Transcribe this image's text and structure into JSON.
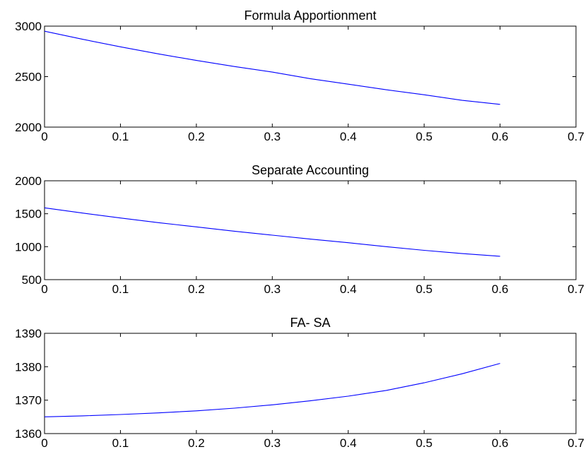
{
  "chart_data": [
    {
      "type": "line",
      "title": "Formula Apportionment",
      "xlabel": "",
      "ylabel": "",
      "xlim": [
        0,
        0.7
      ],
      "ylim": [
        2000,
        3000
      ],
      "xticks": [
        "0",
        "0.1",
        "0.2",
        "0.3",
        "0.4",
        "0.5",
        "0.6",
        "0.7"
      ],
      "yticks": [
        "2000",
        "2500",
        "3000"
      ],
      "grid": false,
      "color": "#0000ff",
      "x": [
        0,
        0.05,
        0.1,
        0.15,
        0.2,
        0.25,
        0.3,
        0.35,
        0.4,
        0.45,
        0.5,
        0.55,
        0.6
      ],
      "y": [
        2950,
        2870,
        2795,
        2725,
        2660,
        2600,
        2545,
        2480,
        2425,
        2370,
        2320,
        2265,
        2225
      ]
    },
    {
      "type": "line",
      "title": "Separate Accounting",
      "xlabel": "",
      "ylabel": "",
      "xlim": [
        0,
        0.7
      ],
      "ylim": [
        500,
        2000
      ],
      "xticks": [
        "0",
        "0.1",
        "0.2",
        "0.3",
        "0.4",
        "0.5",
        "0.6",
        "0.7"
      ],
      "yticks": [
        "500",
        "1000",
        "1500",
        "2000"
      ],
      "grid": false,
      "color": "#0000ff",
      "x": [
        0,
        0.05,
        0.1,
        0.15,
        0.2,
        0.25,
        0.3,
        0.35,
        0.4,
        0.45,
        0.5,
        0.55,
        0.6
      ],
      "y": [
        1590,
        1510,
        1435,
        1365,
        1300,
        1235,
        1175,
        1115,
        1060,
        1000,
        945,
        895,
        855
      ]
    },
    {
      "type": "line",
      "title": "FA- SA",
      "xlabel": "",
      "ylabel": "",
      "xlim": [
        0,
        0.7
      ],
      "ylim": [
        1360,
        1390
      ],
      "xticks": [
        "0",
        "0.1",
        "0.2",
        "0.3",
        "0.4",
        "0.5",
        "0.6",
        "0.7"
      ],
      "yticks": [
        "1360",
        "1370",
        "1380",
        "1390"
      ],
      "grid": false,
      "color": "#0000ff",
      "x": [
        0,
        0.05,
        0.1,
        0.15,
        0.2,
        0.25,
        0.3,
        0.35,
        0.4,
        0.45,
        0.5,
        0.55,
        0.6
      ],
      "y": [
        1365.0,
        1365.3,
        1365.7,
        1366.2,
        1366.8,
        1367.6,
        1368.6,
        1369.8,
        1371.2,
        1372.9,
        1375.2,
        1377.9,
        1381.0
      ]
    }
  ]
}
